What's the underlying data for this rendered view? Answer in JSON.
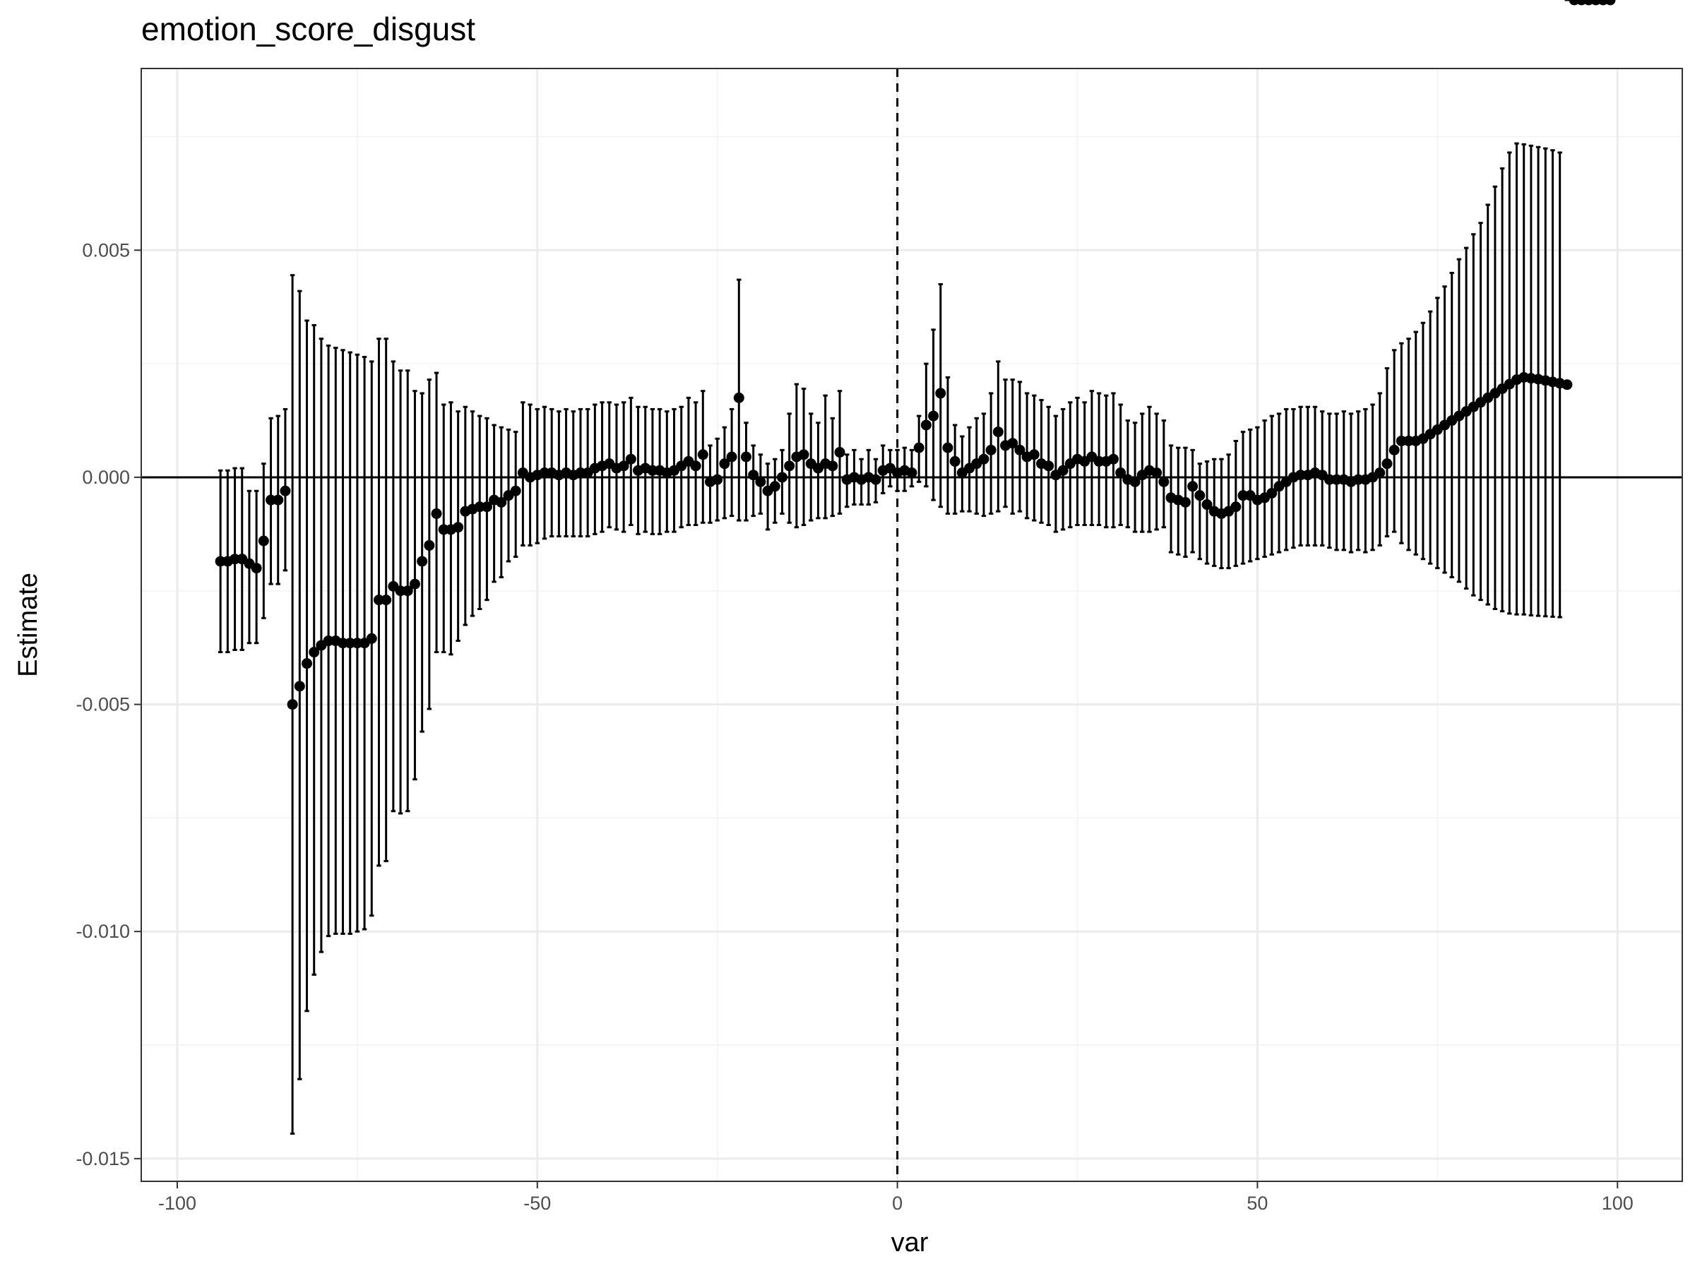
{
  "chart_data": {
    "type": "scatter",
    "title": "emotion_score_disgust",
    "xlabel": "var",
    "ylabel": "Estimate",
    "xlim": [
      -105,
      109
    ],
    "ylim": [
      -0.0155,
      0.009
    ],
    "x_ticks": [
      -100,
      -50,
      0,
      50,
      100
    ],
    "x_tick_labels": [
      "-100",
      "-50",
      "0",
      "50",
      "100"
    ],
    "y_ticks": [
      -0.015,
      -0.01,
      -0.005,
      0.0,
      0.005
    ],
    "y_tick_labels": [
      "-0.015",
      "-0.010",
      "-0.005",
      "0.000",
      "0.005"
    ],
    "grid": true,
    "reference_lines": [
      {
        "orientation": "horizontal",
        "value": 0,
        "style": "solid"
      },
      {
        "orientation": "vertical",
        "value": 0,
        "style": "dashed"
      }
    ],
    "series": [
      {
        "x": [
          -94,
          -93,
          -92,
          -91,
          -90,
          -89,
          -88,
          -87,
          -86,
          -85,
          -84,
          -83,
          -82,
          -81,
          -80,
          -79,
          -78,
          -77,
          -76,
          -75,
          -74,
          -73,
          -72,
          -71,
          -70,
          -69,
          -68,
          -67,
          -66,
          -65,
          -64,
          -63,
          -62,
          -61,
          -60,
          -59,
          -58,
          -57,
          -56,
          -55,
          -54,
          -53,
          -52,
          -51,
          -50,
          -49,
          -48,
          -47,
          -46,
          -45,
          -44,
          -43,
          -42,
          -41,
          -40,
          -39,
          -38,
          -37,
          -36,
          -35,
          -34,
          -33,
          -32,
          -31,
          -30,
          -29,
          -28,
          -27,
          -26,
          -25,
          -24,
          -23,
          -22,
          -21,
          -20,
          -19,
          -18,
          -17,
          -16,
          -15,
          -14,
          -13,
          -12,
          -11,
          -10,
          -9,
          -8,
          -7,
          -6,
          -5,
          -4,
          -3,
          -2,
          -1,
          0,
          1,
          2,
          3,
          4,
          5,
          6,
          7,
          8,
          9,
          10,
          11,
          12,
          13,
          14,
          15,
          16,
          17,
          18,
          19,
          20,
          21,
          22,
          23,
          24,
          25,
          26,
          27,
          28,
          29,
          30,
          31,
          32,
          33,
          34,
          35,
          36,
          37,
          38,
          39,
          40,
          41,
          42,
          43,
          44,
          45,
          46,
          47,
          48,
          49,
          50,
          51,
          52,
          53,
          54,
          55,
          56,
          57,
          58,
          59,
          60,
          61,
          62,
          63,
          64,
          65,
          66,
          67,
          68,
          69,
          70,
          71,
          72,
          73,
          74,
          75,
          76,
          77,
          78,
          79,
          80,
          81,
          82,
          83,
          84,
          85,
          86,
          87,
          88,
          89,
          90,
          91,
          92,
          93,
          94,
          95,
          96,
          97,
          98,
          99
        ],
        "estimate": [
          -0.00185,
          -0.00185,
          -0.0018,
          -0.0018,
          -0.0019,
          -0.002,
          -0.0014,
          -0.0005,
          -0.0005,
          -0.0003,
          -0.005,
          -0.0046,
          -0.0041,
          -0.00385,
          -0.0037,
          -0.0036,
          -0.0036,
          -0.00365,
          -0.00365,
          -0.00365,
          -0.00365,
          -0.00355,
          -0.0027,
          -0.0027,
          -0.0024,
          -0.0025,
          -0.0025,
          -0.00235,
          -0.00185,
          -0.0015,
          -0.0008,
          -0.00115,
          -0.00115,
          -0.0011,
          -0.00075,
          -0.0007,
          -0.00065,
          -0.00065,
          -0.0005,
          -0.00055,
          -0.0004,
          -0.0003,
          0.0001,
          0.0,
          5e-05,
          0.0001,
          0.0001,
          5e-05,
          0.0001,
          5e-05,
          0.0001,
          0.0001,
          0.0002,
          0.00025,
          0.0003,
          0.0002,
          0.00025,
          0.0004,
          0.00015,
          0.0002,
          0.00015,
          0.00015,
          0.0001,
          0.00015,
          0.00025,
          0.00035,
          0.00025,
          0.0005,
          -0.0001,
          -5e-05,
          0.0003,
          0.00045,
          0.00175,
          0.00045,
          5e-05,
          -0.0001,
          -0.0003,
          -0.0002,
          0.0,
          0.00025,
          0.00045,
          0.0005,
          0.0003,
          0.0002,
          0.0003,
          0.00025,
          0.00055,
          -5e-05,
          0.0,
          -5e-05,
          0.0,
          -5e-05,
          0.00015,
          0.0002,
          0.0001,
          0.00015,
          0.0001,
          0.00065,
          0.00115,
          0.00135,
          0.00185,
          0.00065,
          0.00035,
          0.0001,
          0.0002,
          0.0003,
          0.0004,
          0.0006,
          0.001,
          0.0007,
          0.00075,
          0.0006,
          0.00045,
          0.0005,
          0.0003,
          0.00025,
          5e-05,
          0.00015,
          0.0003,
          0.0004,
          0.00035,
          0.00045,
          0.00035,
          0.00035,
          0.0004,
          0.0001,
          -5e-05,
          -0.0001,
          5e-05,
          0.00015,
          0.0001,
          -0.0001,
          -0.00045,
          -0.0005,
          -0.00055,
          -0.0002,
          -0.0004,
          -0.0006,
          -0.00075,
          -0.0008,
          -0.00075,
          -0.00065,
          -0.0004,
          -0.0004,
          -0.0005,
          -0.00045,
          -0.00035,
          -0.0002,
          -0.0001,
          0.0,
          5e-05,
          5e-05,
          0.0001,
          5e-05,
          -5e-05,
          -5e-05,
          -5e-05,
          -0.0001,
          -5e-05,
          -5e-05,
          0.0,
          0.0001,
          0.0003,
          0.0006,
          0.0008,
          0.0008,
          0.0008,
          0.00085,
          0.00095,
          0.00105,
          0.00115,
          0.00125,
          0.00135,
          0.00145,
          0.00155,
          0.00165,
          0.00175,
          0.00185,
          0.00195,
          0.00205,
          0.00215,
          0.0022,
          0.00218,
          0.00216,
          0.00213,
          0.0021,
          0.00207,
          0.00204
        ],
        "ci_upper": [
          0.00015,
          0.00015,
          0.0002,
          0.0002,
          -0.0003,
          -0.0003,
          0.0003,
          0.0013,
          0.00135,
          0.0015,
          0.00445,
          0.0041,
          0.00345,
          0.00335,
          0.00305,
          0.0029,
          0.00285,
          0.0028,
          0.00275,
          0.0027,
          0.00265,
          0.00255,
          0.00305,
          0.00305,
          0.00255,
          0.00235,
          0.00235,
          0.0019,
          0.00185,
          0.00215,
          0.0023,
          0.0016,
          0.00165,
          0.00145,
          0.00155,
          0.00145,
          0.00135,
          0.0013,
          0.00115,
          0.0011,
          0.00105,
          0.001,
          0.00165,
          0.0016,
          0.0015,
          0.00155,
          0.0015,
          0.00145,
          0.0015,
          0.00145,
          0.0015,
          0.0015,
          0.0016,
          0.00165,
          0.00165,
          0.0016,
          0.00165,
          0.00175,
          0.00155,
          0.00155,
          0.0015,
          0.0015,
          0.00145,
          0.0015,
          0.00155,
          0.00175,
          0.00165,
          0.0019,
          0.0007,
          0.00085,
          0.0011,
          0.0015,
          0.00435,
          0.0012,
          0.0007,
          0.0005,
          0.0003,
          0.0004,
          0.0006,
          0.0014,
          0.00205,
          0.00195,
          0.0014,
          0.0012,
          0.0018,
          0.0013,
          0.0019,
          0.0005,
          0.0006,
          0.0004,
          0.0006,
          0.0004,
          0.0007,
          0.0006,
          0.0006,
          0.00065,
          0.0006,
          0.00135,
          0.0025,
          0.00325,
          0.00425,
          0.0022,
          0.00115,
          0.0009,
          0.0011,
          0.0013,
          0.0014,
          0.00185,
          0.00255,
          0.00215,
          0.00215,
          0.0021,
          0.00185,
          0.0018,
          0.0017,
          0.00155,
          0.00135,
          0.0015,
          0.00165,
          0.00175,
          0.00165,
          0.0019,
          0.00185,
          0.0018,
          0.00185,
          0.0016,
          0.00125,
          0.0012,
          0.0014,
          0.00155,
          0.0014,
          0.00125,
          0.0007,
          0.00065,
          0.00065,
          0.0006,
          0.0003,
          0.00035,
          0.0004,
          0.0004,
          0.0005,
          0.0008,
          0.001,
          0.00105,
          0.0011,
          0.00125,
          0.00135,
          0.0014,
          0.0015,
          0.0015,
          0.00155,
          0.00155,
          0.00155,
          0.00145,
          0.0014,
          0.0014,
          0.00145,
          0.0014,
          0.00145,
          0.0015,
          0.0016,
          0.00185,
          0.0024,
          0.0028,
          0.00295,
          0.00305,
          0.0032,
          0.0034,
          0.00365,
          0.00395,
          0.0042,
          0.0045,
          0.0048,
          0.00505,
          0.00535,
          0.0056,
          0.006,
          0.0064,
          0.0068,
          0.00715,
          0.00735,
          0.00733,
          0.0073,
          0.00727,
          0.00724,
          0.0072,
          0.00715
        ],
        "ci_lower": [
          -0.00385,
          -0.00385,
          -0.0038,
          -0.0038,
          -0.00365,
          -0.00365,
          -0.0031,
          -0.00235,
          -0.00235,
          -0.00205,
          -0.01445,
          -0.01325,
          -0.01175,
          -0.01095,
          -0.01045,
          -0.0101,
          -0.01005,
          -0.01005,
          -0.01005,
          -0.01,
          -0.00995,
          -0.00965,
          -0.00855,
          -0.00845,
          -0.00735,
          -0.0074,
          -0.00735,
          -0.00665,
          -0.0056,
          -0.0051,
          -0.00385,
          -0.00385,
          -0.0039,
          -0.0036,
          -0.00325,
          -0.00305,
          -0.0029,
          -0.0027,
          -0.0023,
          -0.0022,
          -0.00185,
          -0.00175,
          -0.0015,
          -0.0015,
          -0.00145,
          -0.00135,
          -0.0013,
          -0.0013,
          -0.0013,
          -0.0013,
          -0.0013,
          -0.0013,
          -0.00125,
          -0.0012,
          -0.0011,
          -0.00115,
          -0.0012,
          -0.00105,
          -0.00125,
          -0.0012,
          -0.00125,
          -0.00125,
          -0.0012,
          -0.0012,
          -0.0011,
          -0.00105,
          -0.00105,
          -0.001,
          -0.001,
          -0.00095,
          -0.0009,
          -0.00085,
          -0.00095,
          -0.00095,
          -0.00085,
          -0.0008,
          -0.00115,
          -0.001,
          -0.0008,
          -0.001,
          -0.0011,
          -0.00105,
          -0.00095,
          -0.0009,
          -0.0009,
          -0.00085,
          -0.0008,
          -0.00065,
          -0.0006,
          -0.0006,
          -0.0006,
          -0.00055,
          -0.00035,
          -0.0002,
          -0.0003,
          -0.0003,
          -0.0002,
          -0.0001,
          -0.0002,
          -0.0005,
          -0.00065,
          -0.0008,
          -0.0008,
          -0.00075,
          -0.00075,
          -0.0008,
          -0.00085,
          -0.0008,
          -0.00075,
          -0.00065,
          -0.0008,
          -0.00075,
          -0.0009,
          -0.00095,
          -0.001,
          -0.00105,
          -0.0012,
          -0.00115,
          -0.0011,
          -0.00105,
          -0.00105,
          -0.00105,
          -0.00105,
          -0.0011,
          -0.0011,
          -0.00105,
          -0.0011,
          -0.0012,
          -0.0012,
          -0.0012,
          -0.00115,
          -0.0011,
          -0.00165,
          -0.0017,
          -0.00175,
          -0.00165,
          -0.0018,
          -0.0019,
          -0.00195,
          -0.002,
          -0.002,
          -0.00195,
          -0.0019,
          -0.00185,
          -0.0018,
          -0.00175,
          -0.0017,
          -0.00165,
          -0.0016,
          -0.00155,
          -0.0015,
          -0.0015,
          -0.0015,
          -0.0015,
          -0.00155,
          -0.0016,
          -0.0016,
          -0.00165,
          -0.0016,
          -0.00165,
          -0.0016,
          -0.0015,
          -0.0013,
          -0.0012,
          -0.00145,
          -0.0016,
          -0.0017,
          -0.0018,
          -0.0019,
          -0.002,
          -0.0021,
          -0.0022,
          -0.0023,
          -0.00245,
          -0.0026,
          -0.0027,
          -0.0028,
          -0.0029,
          -0.00295,
          -0.003,
          -0.00302,
          -0.00302,
          -0.00304,
          -0.00305,
          -0.00306,
          -0.00307,
          -0.00308
        ]
      }
    ]
  }
}
